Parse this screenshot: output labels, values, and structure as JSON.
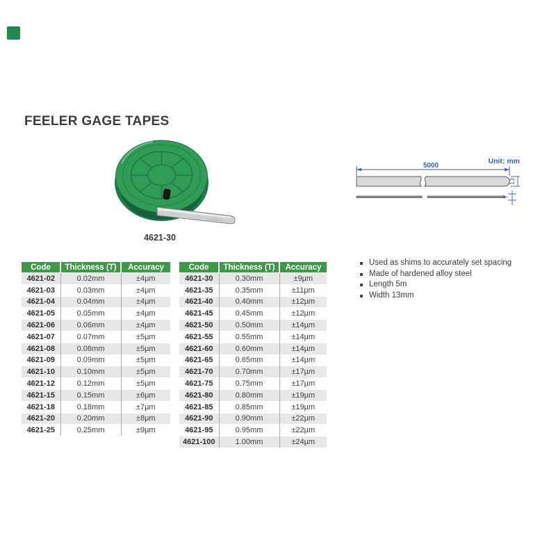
{
  "logo": {
    "color": "#1f8a4c"
  },
  "page_title": "FEELER GAGE TAPES",
  "product": {
    "caption": "4621-30"
  },
  "drawing": {
    "unit_label": "Unit: mm",
    "length_label": "5000",
    "width_label": "13",
    "thickness_label": "T"
  },
  "features": [
    "Used as shims to accurately set spacing",
    "Made of hardened alloy steel",
    "Length 5m",
    "Width 13mm"
  ],
  "table": {
    "headers": [
      "Code",
      "Thickness (T)",
      "Accuracy"
    ],
    "left_rows": [
      [
        "4621-02",
        "0.02mm",
        "±4µm"
      ],
      [
        "4621-03",
        "0.03mm",
        "±4µm"
      ],
      [
        "4621-04",
        "0.04mm",
        "±4µm"
      ],
      [
        "4621-05",
        "0.05mm",
        "±4µm"
      ],
      [
        "4621-06",
        "0.06mm",
        "±4µm"
      ],
      [
        "4621-07",
        "0.07mm",
        "±5µm"
      ],
      [
        "4621-08",
        "0.08mm",
        "±5µm"
      ],
      [
        "4621-09",
        "0.09mm",
        "±5µm"
      ],
      [
        "4621-10",
        "0.10mm",
        "±5µm"
      ],
      [
        "4621-12",
        "0.12mm",
        "±5µm"
      ],
      [
        "4621-15",
        "0.15mm",
        "±6µm"
      ],
      [
        "4621-18",
        "0.18mm",
        "±7µm"
      ],
      [
        "4621-20",
        "0.20mm",
        "±8µm"
      ],
      [
        "4621-25",
        "0.25mm",
        "±9µm"
      ]
    ],
    "right_rows": [
      [
        "4621-30",
        "0.30mm",
        "±9µm"
      ],
      [
        "4621-35",
        "0.35mm",
        "±11µm"
      ],
      [
        "4621-40",
        "0.40mm",
        "±12µm"
      ],
      [
        "4621-45",
        "0.45mm",
        "±12µm"
      ],
      [
        "4621-50",
        "0.50mm",
        "±14µm"
      ],
      [
        "4621-55",
        "0.55mm",
        "±14µm"
      ],
      [
        "4621-60",
        "0.60mm",
        "±14µm"
      ],
      [
        "4621-65",
        "0.65mm",
        "±14µm"
      ],
      [
        "4621-70",
        "0.70mm",
        "±17µm"
      ],
      [
        "4621-75",
        "0.75mm",
        "±17µm"
      ],
      [
        "4621-80",
        "0.80mm",
        "±19µm"
      ],
      [
        "4621-85",
        "0.85mm",
        "±19µm"
      ],
      [
        "4621-90",
        "0.90mm",
        "±22µm"
      ],
      [
        "4621-95",
        "0.95mm",
        "±22µm"
      ],
      [
        "4621-100",
        "1.00mm",
        "±24µm"
      ]
    ]
  },
  "colors": {
    "header_green": "#3c9a47",
    "logo_green": "#1f8a4c",
    "row_alt_gray": "#e7e7e7",
    "dimension_blue": "#3a5dad",
    "disc_green": "#2f9d57",
    "tape_gray": "#d9d9d9",
    "text_dark": "#3a3a3a"
  }
}
